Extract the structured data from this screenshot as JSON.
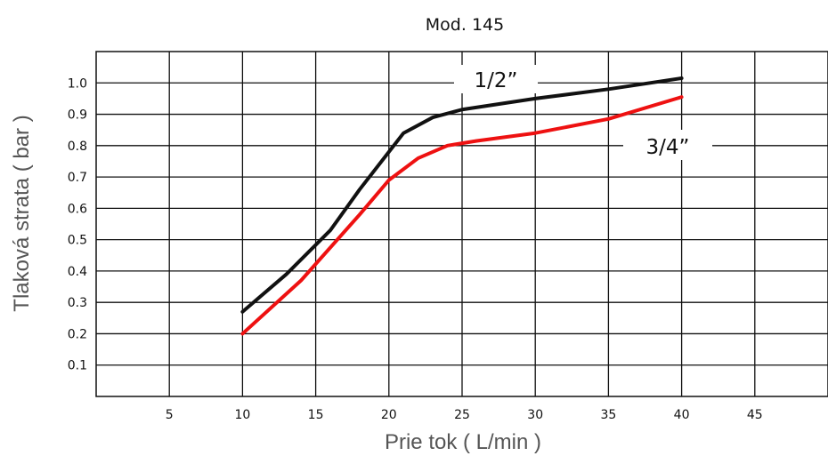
{
  "chart_data": {
    "type": "line",
    "title": "Mod. 145",
    "xlabel": "Prie tok ( L/min )",
    "ylabel": "Tlaková strata ( bar )",
    "xlim": [
      0,
      50
    ],
    "ylim": [
      0,
      1.1
    ],
    "x_ticks": [
      5,
      10,
      15,
      20,
      25,
      30,
      35,
      40,
      45
    ],
    "y_ticks": [
      0.1,
      0.2,
      0.3,
      0.4,
      0.5,
      0.6,
      0.7,
      0.8,
      0.9,
      1.0
    ],
    "y_tick_labels": [
      "0.1",
      "0.2",
      "0.3",
      "0.4",
      "0.5",
      "0.6",
      "0.7",
      "0.8",
      "0.9",
      "1.0"
    ],
    "grid": true,
    "series": [
      {
        "name": "1/2”",
        "color": "#111111",
        "x": [
          10,
          13,
          16,
          18,
          20,
          21,
          23,
          25,
          30,
          35,
          40
        ],
        "y": [
          0.27,
          0.39,
          0.53,
          0.66,
          0.78,
          0.84,
          0.89,
          0.915,
          0.95,
          0.98,
          1.015
        ]
      },
      {
        "name": "3/4”",
        "color": "#ee1111",
        "x": [
          10,
          14,
          18,
          20,
          22,
          24,
          26,
          30,
          35,
          40
        ],
        "y": [
          0.2,
          0.37,
          0.58,
          0.69,
          0.76,
          0.8,
          0.815,
          0.84,
          0.885,
          0.955
        ]
      }
    ]
  }
}
